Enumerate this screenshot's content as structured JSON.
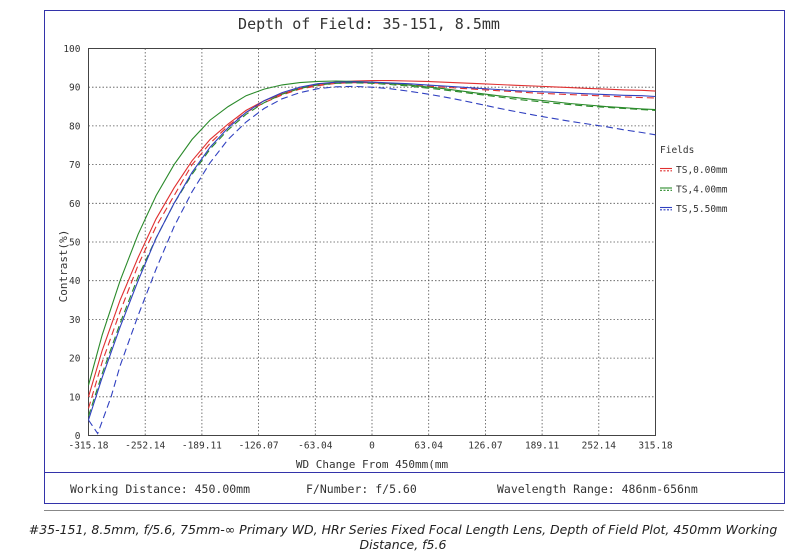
{
  "chart_data": {
    "type": "line",
    "title": "Depth of Field: 35-151, 8.5mm",
    "xlabel": "WD Change From 450mm(mm",
    "ylabel": "Contrast(%)",
    "xlim": [
      -315.18,
      315.18
    ],
    "ylim": [
      0,
      100
    ],
    "xticks": [
      "-315.18",
      "-252.14",
      "-189.11",
      "-126.07",
      "-63.04",
      "0",
      "63.04",
      "126.07",
      "189.11",
      "252.14",
      "315.18"
    ],
    "yticks": [
      "0",
      "10",
      "20",
      "30",
      "40",
      "50",
      "60",
      "70",
      "80",
      "90",
      "100"
    ],
    "grid": true,
    "legend": {
      "title": "Fields",
      "placement": "right"
    },
    "series": [
      {
        "name": "TS,0.00mm",
        "color": "#e03030",
        "style": "solid",
        "x": [
          -315.18,
          -300,
          -280,
          -260,
          -240,
          -220,
          -200,
          -180,
          -160,
          -140,
          -120,
          -100,
          -80,
          -60,
          -40,
          -20,
          0,
          20,
          40,
          60,
          80,
          100,
          120,
          140,
          160,
          180,
          200,
          220,
          240,
          260,
          280,
          300,
          315.18
        ],
        "y": [
          10,
          22,
          35,
          46,
          56,
          64,
          71,
          76.5,
          80.5,
          84,
          86.5,
          88.3,
          89.7,
          90.7,
          91.3,
          91.6,
          91.7,
          91.7,
          91.6,
          91.5,
          91.3,
          91.1,
          90.9,
          90.7,
          90.5,
          90.3,
          90.1,
          89.9,
          89.7,
          89.5,
          89.3,
          89.2,
          89
        ]
      },
      {
        "name": "TS,0.00mm",
        "color": "#e03030",
        "style": "dashed",
        "x": [
          -315.18,
          -300,
          -280,
          -260,
          -240,
          -220,
          -200,
          -180,
          -160,
          -140,
          -120,
          -100,
          -80,
          -60,
          -40,
          -20,
          0,
          20,
          40,
          60,
          80,
          100,
          120,
          140,
          160,
          180,
          200,
          220,
          240,
          260,
          280,
          300,
          315.18
        ],
        "y": [
          7,
          19,
          32,
          44,
          54,
          62,
          70,
          75.5,
          80,
          83.5,
          86,
          88,
          89.5,
          90.4,
          91,
          91.2,
          91.1,
          90.9,
          90.6,
          90.3,
          90,
          89.7,
          89.4,
          89.1,
          88.8,
          88.5,
          88.3,
          88.1,
          87.9,
          87.7,
          87.5,
          87.3,
          87.2
        ]
      },
      {
        "name": "TS,4.00mm",
        "color": "#2a8a2a",
        "style": "solid",
        "x": [
          -315.18,
          -300,
          -280,
          -260,
          -240,
          -220,
          -200,
          -180,
          -160,
          -140,
          -120,
          -100,
          -80,
          -60,
          -40,
          -20,
          0,
          20,
          40,
          60,
          80,
          100,
          120,
          140,
          160,
          180,
          200,
          220,
          240,
          260,
          280,
          300,
          315.18
        ],
        "y": [
          13,
          26,
          40,
          52,
          62,
          70,
          76.5,
          81.5,
          85,
          87.8,
          89.5,
          90.6,
          91.2,
          91.5,
          91.6,
          91.5,
          91.3,
          91,
          90.6,
          90.1,
          89.6,
          89,
          88.4,
          87.8,
          87.3,
          86.8,
          86.3,
          85.8,
          85.4,
          85,
          84.7,
          84.4,
          84.2
        ]
      },
      {
        "name": "TS,4.00mm",
        "color": "#2a8a2a",
        "style": "dashed",
        "x": [
          -315.18,
          -300,
          -280,
          -260,
          -240,
          -220,
          -200,
          -180,
          -160,
          -140,
          -120,
          -100,
          -80,
          -60,
          -40,
          -20,
          0,
          20,
          40,
          60,
          80,
          100,
          120,
          140,
          160,
          180,
          200,
          220,
          240,
          260,
          280,
          300,
          315.18
        ],
        "y": [
          5,
          16,
          29,
          41,
          51,
          60,
          67.5,
          74,
          79,
          83,
          86,
          88.2,
          89.7,
          90.6,
          91,
          91.1,
          91,
          90.7,
          90.3,
          89.8,
          89.3,
          88.7,
          88.1,
          87.5,
          86.9,
          86.4,
          85.9,
          85.5,
          85.1,
          84.8,
          84.5,
          84.2,
          84
        ]
      },
      {
        "name": "TS,5.50mm",
        "color": "#3040c0",
        "style": "solid",
        "x": [
          -315.18,
          -300,
          -280,
          -260,
          -240,
          -220,
          -200,
          -180,
          -160,
          -140,
          -120,
          -100,
          -80,
          -60,
          -40,
          -20,
          0,
          20,
          40,
          60,
          80,
          100,
          120,
          140,
          160,
          180,
          200,
          220,
          240,
          260,
          280,
          300,
          315.18
        ],
        "y": [
          4,
          15,
          28,
          40,
          51,
          60,
          68,
          74.5,
          79.5,
          83.5,
          86.5,
          88.6,
          90,
          90.9,
          91.3,
          91.4,
          91.3,
          91.1,
          90.9,
          90.6,
          90.3,
          90,
          89.7,
          89.4,
          89.1,
          88.9,
          88.7,
          88.5,
          88.3,
          88.1,
          87.9,
          87.8,
          87.6
        ]
      },
      {
        "name": "TS,5.50mm",
        "color": "#3040c0",
        "style": "dashed",
        "x": [
          -315.18,
          -305,
          -290,
          -280,
          -260,
          -240,
          -220,
          -200,
          -180,
          -160,
          -140,
          -120,
          -100,
          -80,
          -60,
          -40,
          -20,
          0,
          20,
          40,
          60,
          80,
          100,
          120,
          140,
          160,
          180,
          200,
          220,
          240,
          260,
          280,
          300,
          315.18
        ],
        "y": [
          4,
          0.5,
          10,
          18,
          31,
          43,
          54,
          63,
          70.5,
          76.5,
          81,
          84.5,
          87,
          88.6,
          89.6,
          90.1,
          90.2,
          90,
          89.6,
          89,
          88.3,
          87.5,
          86.6,
          85.6,
          84.6,
          83.7,
          82.8,
          82,
          81.2,
          80.5,
          79.8,
          79,
          78.3,
          77.7
        ]
      }
    ]
  },
  "info_bar": {
    "working_distance": "Working Distance: 450.00mm",
    "f_number": "F/Number: f/5.60",
    "wavelength": "Wavelength Range: 486nm-656nm"
  },
  "caption": "#35-151, 8.5mm, f/5.6, 75mm-∞ Primary WD, HRr Series Fixed Focal Length Lens, Depth of Field Plot, 450mm Working Distance, f5.6"
}
